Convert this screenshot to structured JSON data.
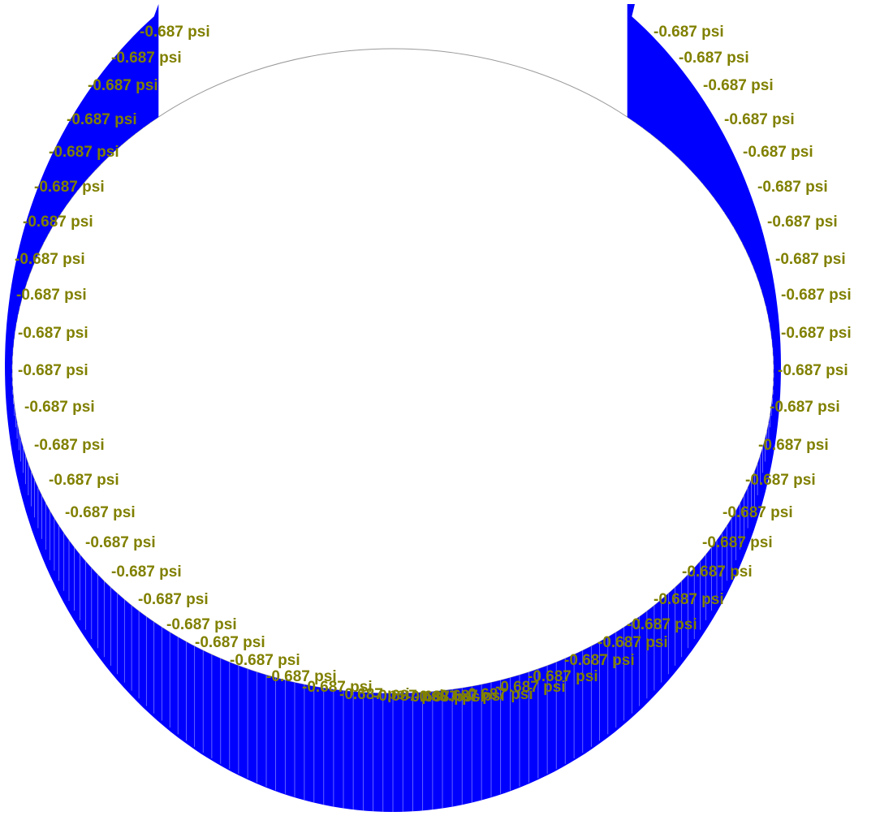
{
  "diagram": {
    "description_type": "pressure-load-on-cylindrical-surface",
    "load_value": "-0.687 psi",
    "colors": {
      "arrow": "#0000ff",
      "label": "#808000",
      "outline": "#9a9a9a",
      "background": "#ffffff"
    },
    "labels": [
      "-0.687 psi",
      "-0.687 psi",
      "-0.687 psi",
      "-0.687 psi",
      "-0.687 psi",
      "-0.687 psi",
      "-0.687 psi",
      "-0.687 psi",
      "-0.687 psi",
      "-0.687 psi",
      "-0.687 psi",
      "-0.687 psi",
      "-0.687 psi",
      "-0.687 psi",
      "-0.687 psi",
      "-0.687 psi",
      "-0.687 psi",
      "-0.687 psi",
      "-0.687 psi",
      "-0.687 psi",
      "-0.687 psi",
      "-0.687 psi",
      "-0.687 psi",
      "-0.687 psi",
      "-0.687 psi",
      "-0.687 psi",
      "-0.687 psi",
      "-0.687 psi",
      "-0.687 psi",
      "-0.687 psi",
      "-0.687 psi",
      "-0.687 psi",
      "-0.687 psi",
      "-0.687 psi",
      "-0.687 psi",
      "-0.687 psi",
      "-0.687 psi",
      "-0.687 psi",
      "-0.687 psi",
      "-0.687 psi",
      "-0.687 psi",
      "-0.687 psi",
      "-0.687 psi",
      "-0.687 psi",
      "-0.687 psi",
      "-0.687 psi",
      "-0.687 psi",
      "-0.687 psi",
      "-0.687 psi",
      "-0.687 psi",
      "-0.687 psi",
      "-0.687 psi"
    ]
  }
}
